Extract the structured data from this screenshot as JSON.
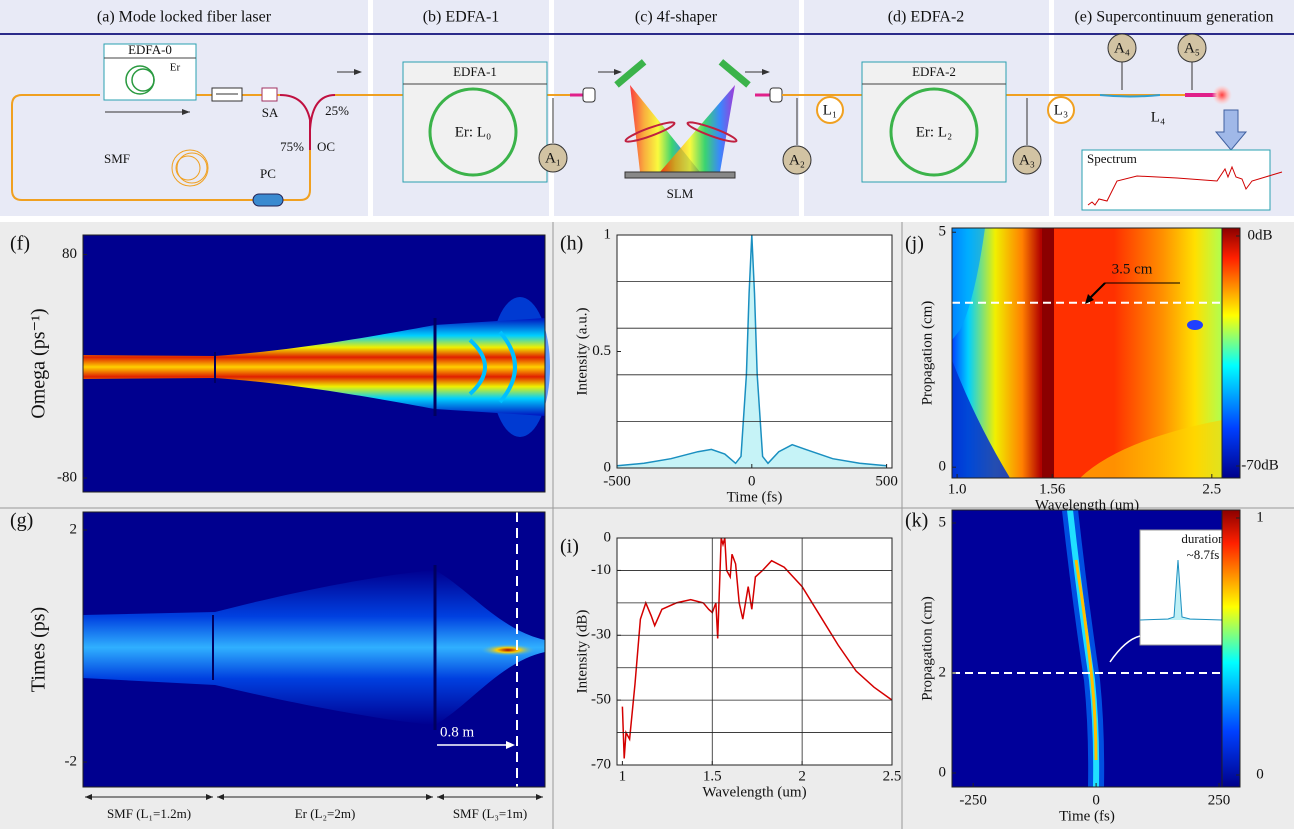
{
  "schematic": {
    "sections": [
      "(a) Mode locked fiber laser",
      "(b) EDFA-1",
      "(c) 4f-shaper",
      "(d) EDFA-2",
      "(e) Supercontinuum generation"
    ],
    "labels": {
      "edfa0": "EDFA-0",
      "er": "Er",
      "sa": "SA",
      "out": "25%",
      "loop": "75%",
      "oc": "OC",
      "smf": "SMF",
      "pc": "PC",
      "edfa1": "EDFA-1",
      "gain1": "Er: L₀",
      "a1": "A₁",
      "slm": "SLM",
      "a2": "A₂",
      "l1": "L₁",
      "edfa2": "EDFA-2",
      "gain2": "Er: L₂",
      "a3": "A₃",
      "l3": "L₃",
      "a4": "A₄",
      "a5": "A₅",
      "l4": "L₄",
      "spectrum": "Spectrum"
    }
  },
  "chart_data": [
    {
      "type": "heatmap",
      "panel_label": "(f)",
      "ylabel": "Omega (ps⁻¹)",
      "ylim": [
        -90,
        94
      ],
      "yticks": [
        -80,
        80
      ]
    },
    {
      "type": "heatmap",
      "panel_label": "(g)",
      "ylabel": "Times (ps)",
      "ylim": [
        -2.43,
        2.31
      ],
      "yticks": [
        -2,
        2
      ],
      "annotation": "0.8 m",
      "segments": [
        "SMF (L₁=1.2m)",
        "Er (L₂=2m)",
        "SMF (L₃=1m)"
      ]
    },
    {
      "type": "line",
      "panel_label": "(h)",
      "xlabel": "Time (fs)",
      "ylabel": "Intensity (a.u.)",
      "xlim": [
        -500,
        520
      ],
      "ylim": [
        0,
        1
      ],
      "xticks": [
        -500,
        0,
        500
      ],
      "yticks": [
        0,
        0.5,
        1
      ],
      "ygrid": [
        0.2,
        0.4,
        0.6,
        0.8
      ],
      "xgrid": [],
      "series": [
        {
          "color": "#1a8fc0",
          "fill": "#c6f3f7",
          "x": [
            -500,
            -400,
            -300,
            -200,
            -150,
            -100,
            -60,
            -40,
            -20,
            -10,
            0,
            10,
            20,
            40,
            60,
            100,
            150,
            200,
            300,
            400,
            500
          ],
          "values": [
            0.01,
            0.02,
            0.04,
            0.07,
            0.08,
            0.06,
            0.02,
            0.05,
            0.4,
            0.75,
            1,
            0.75,
            0.4,
            0.05,
            0.02,
            0.07,
            0.1,
            0.08,
            0.04,
            0.02,
            0.01
          ]
        }
      ]
    },
    {
      "type": "line",
      "panel_label": "(i)",
      "xlabel": "Wavelength (um)",
      "ylabel": "Intensity (dB)",
      "xlim": [
        0.97,
        2.5
      ],
      "ylim": [
        -70,
        0
      ],
      "xticks": [
        1,
        1.5,
        2,
        2.5
      ],
      "yticks": [
        0,
        -10,
        -30,
        -50,
        -70
      ],
      "ygrid": [
        -10,
        -20,
        -30,
        -40,
        -50,
        -60
      ],
      "xgrid": [
        1.5,
        2
      ],
      "series": [
        {
          "color": "#d40000",
          "x": [
            1.0,
            1.01,
            1.02,
            1.04,
            1.07,
            1.1,
            1.13,
            1.16,
            1.18,
            1.22,
            1.3,
            1.38,
            1.45,
            1.48,
            1.5,
            1.52,
            1.53,
            1.54,
            1.55,
            1.56,
            1.57,
            1.58,
            1.6,
            1.61,
            1.63,
            1.65,
            1.67,
            1.7,
            1.72,
            1.74,
            1.78,
            1.83,
            1.9,
            2.0,
            2.1,
            2.2,
            2.3,
            2.4,
            2.5
          ],
          "values": [
            -52,
            -68,
            -60,
            -62,
            -45,
            -25,
            -20,
            -24,
            -27,
            -22,
            -20,
            -19,
            -20,
            -22,
            -23,
            -20,
            -31,
            -15,
            0,
            -2,
            0,
            -10,
            -12,
            -5,
            -8,
            -20,
            -25,
            -15,
            -22,
            -12,
            -10,
            -7,
            -9,
            -15,
            -24,
            -33,
            -41,
            -46,
            -50
          ]
        }
      ]
    },
    {
      "type": "heatmap",
      "panel_label": "(j)",
      "xlabel": "Wavelength (um)",
      "ylabel": "Propagation (cm)",
      "xlim": [
        0.97,
        2.56
      ],
      "ylim": [
        -0.23,
        5.09
      ],
      "xticks": [
        {
          "value": 1,
          "label": "1.0"
        },
        1.56,
        2.5
      ],
      "yticks": [
        0,
        5
      ],
      "clim": [
        -70,
        0
      ],
      "cticks": [
        {
          "value": 0,
          "label": "0dB"
        },
        {
          "value": -70,
          "label": "-70dB"
        }
      ],
      "highlight_y": 3.5,
      "annotation": "3.5 cm"
    },
    {
      "type": "heatmap",
      "panel_label": "(k)",
      "xlabel": "Time (fs)",
      "ylabel": "Propagation (cm)",
      "xlim": [
        -293,
        256
      ],
      "ylim": [
        -0.28,
        5.26
      ],
      "xticks": [
        -250,
        0,
        250
      ],
      "yticks": [
        0,
        2,
        5
      ],
      "clim": [
        0,
        1
      ],
      "cticks": [
        0,
        1
      ],
      "highlight_y": 2,
      "annotation": [
        "duration",
        "~8.7fs"
      ]
    }
  ]
}
